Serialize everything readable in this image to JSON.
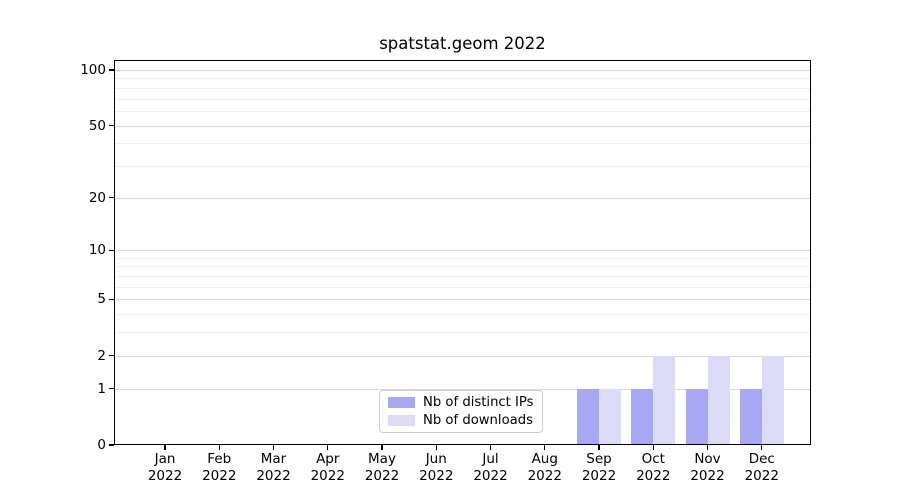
{
  "chart_data": {
    "type": "bar",
    "title": "spatstat.geom 2022",
    "xlabel": "",
    "ylabel": "",
    "categories": [
      "Jan 2022",
      "Feb 2022",
      "Mar 2022",
      "Apr 2022",
      "May 2022",
      "Jun 2022",
      "Jul 2022",
      "Aug 2022",
      "Sep 2022",
      "Oct 2022",
      "Nov 2022",
      "Dec 2022"
    ],
    "series": [
      {
        "name": "Nb of distinct IPs",
        "color": "#a7a7f3",
        "values": [
          0,
          0,
          0,
          0,
          0,
          0,
          0,
          0,
          1,
          1,
          1,
          1
        ]
      },
      {
        "name": "Nb of downloads",
        "color": "#dcdcf9",
        "values": [
          0,
          0,
          0,
          0,
          0,
          0,
          0,
          0,
          1,
          2,
          2,
          2
        ]
      }
    ],
    "y_scale": "log1p",
    "ylim": [
      0,
      114
    ],
    "y_ticks_major": [
      0,
      1,
      2,
      5,
      10,
      20,
      50,
      100
    ],
    "y_ticks_minor": [
      3,
      4,
      6,
      7,
      8,
      9,
      30,
      40,
      60,
      70,
      80,
      90
    ],
    "grid": "horizontal",
    "legend_position": "lower center",
    "colors": {
      "major_grid": "#d9d9d9",
      "minor_grid": "#efefef",
      "axis": "#000000",
      "text": "#000000",
      "background": "#ffffff",
      "legend_border": "#cccccc",
      "legend_background": "#ffffff"
    }
  }
}
